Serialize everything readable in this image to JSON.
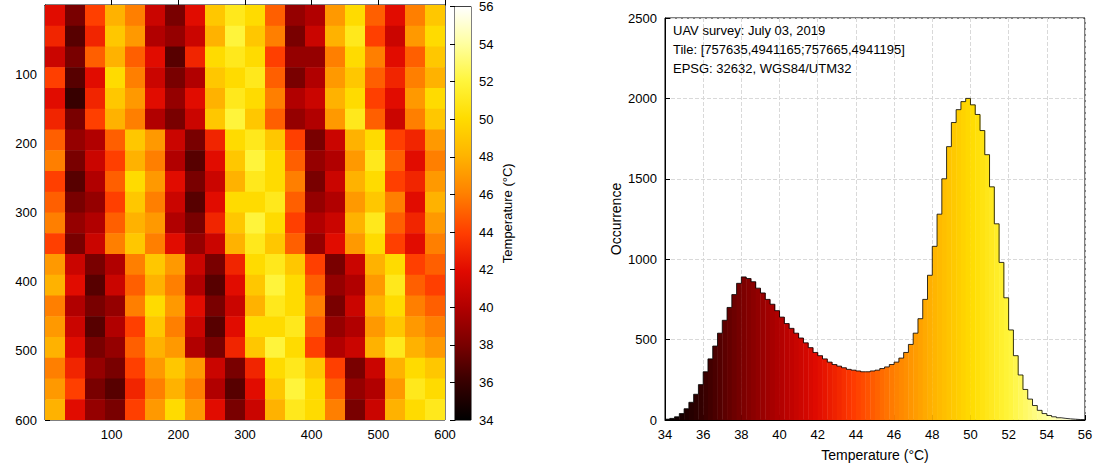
{
  "chart_data": [
    {
      "type": "heatmap",
      "xlim": [
        0,
        600
      ],
      "ylim": [
        600,
        0
      ],
      "xticks": [
        100,
        200,
        300,
        400,
        500,
        600
      ],
      "yticks": [
        100,
        200,
        300,
        400,
        500,
        600
      ],
      "cells": [
        [
          42,
          38,
          44,
          48,
          46,
          41,
          38,
          42,
          49,
          51,
          50,
          45,
          39,
          40,
          47,
          50,
          45,
          42,
          46,
          49
        ],
        [
          43,
          37,
          43,
          49,
          47,
          40,
          39,
          41,
          48,
          52,
          49,
          46,
          38,
          41,
          48,
          51,
          44,
          41,
          47,
          50
        ],
        [
          41,
          38,
          45,
          48,
          45,
          42,
          37,
          43,
          50,
          51,
          50,
          44,
          39,
          39,
          46,
          50,
          46,
          42,
          45,
          49
        ],
        [
          44,
          37,
          42,
          50,
          46,
          41,
          38,
          40,
          49,
          50,
          51,
          45,
          38,
          40,
          47,
          49,
          45,
          43,
          46,
          48
        ],
        [
          42,
          36,
          43,
          49,
          47,
          42,
          39,
          42,
          48,
          51,
          50,
          46,
          40,
          41,
          48,
          50,
          44,
          42,
          47,
          50
        ],
        [
          43,
          38,
          44,
          48,
          46,
          40,
          38,
          41,
          49,
          52,
          49,
          45,
          39,
          40,
          47,
          51,
          45,
          41,
          46,
          49
        ],
        [
          45,
          39,
          40,
          45,
          49,
          47,
          41,
          38,
          43,
          50,
          51,
          49,
          44,
          38,
          41,
          48,
          50,
          44,
          43,
          47
        ],
        [
          46,
          38,
          41,
          44,
          48,
          46,
          40,
          37,
          42,
          49,
          52,
          50,
          45,
          39,
          40,
          47,
          51,
          45,
          42,
          46
        ],
        [
          44,
          37,
          40,
          45,
          50,
          47,
          42,
          38,
          41,
          48,
          51,
          50,
          46,
          38,
          41,
          48,
          50,
          44,
          43,
          47
        ],
        [
          45,
          38,
          39,
          44,
          49,
          46,
          41,
          37,
          42,
          50,
          50,
          51,
          45,
          39,
          40,
          47,
          49,
          46,
          42,
          48
        ],
        [
          46,
          39,
          40,
          45,
          48,
          47,
          40,
          38,
          43,
          49,
          52,
          50,
          44,
          40,
          41,
          48,
          51,
          45,
          43,
          47
        ],
        [
          44,
          38,
          41,
          46,
          49,
          46,
          42,
          39,
          41,
          48,
          51,
          49,
          45,
          39,
          42,
          47,
          50,
          44,
          42,
          46
        ],
        [
          47,
          41,
          38,
          40,
          46,
          49,
          47,
          41,
          38,
          43,
          50,
          51,
          49,
          44,
          38,
          41,
          48,
          50,
          44,
          45
        ],
        [
          48,
          42,
          37,
          41,
          45,
          48,
          46,
          40,
          37,
          42,
          49,
          52,
          50,
          45,
          39,
          40,
          47,
          51,
          45,
          44
        ],
        [
          46,
          40,
          38,
          39,
          46,
          50,
          47,
          42,
          38,
          41,
          48,
          51,
          50,
          46,
          38,
          41,
          48,
          50,
          46,
          45
        ],
        [
          47,
          41,
          37,
          40,
          44,
          49,
          46,
          41,
          37,
          42,
          50,
          50,
          51,
          45,
          39,
          40,
          47,
          49,
          47,
          46
        ],
        [
          48,
          42,
          38,
          39,
          45,
          48,
          47,
          40,
          38,
          43,
          49,
          52,
          50,
          44,
          40,
          41,
          48,
          51,
          48,
          47
        ],
        [
          46,
          43,
          39,
          38,
          44,
          47,
          49,
          47,
          41,
          38,
          43,
          50,
          51,
          49,
          44,
          38,
          41,
          48,
          50,
          49
        ],
        [
          47,
          44,
          38,
          37,
          43,
          46,
          48,
          46,
          40,
          37,
          42,
          49,
          52,
          50,
          45,
          39,
          40,
          47,
          51,
          50
        ],
        [
          48,
          42,
          39,
          38,
          44,
          47,
          50,
          47,
          42,
          38,
          41,
          48,
          51,
          50,
          46,
          38,
          41,
          48,
          50,
          51
        ]
      ],
      "colorbar": {
        "label": "Temperature (°C)",
        "range": [
          34,
          56
        ],
        "ticks": [
          34,
          36,
          38,
          40,
          42,
          44,
          46,
          48,
          50,
          52,
          54,
          56
        ]
      }
    },
    {
      "type": "histogram",
      "x_label": "Temperature (°C)",
      "y_label": "Occurrence",
      "annotations": [
        "UAV survey: July 03, 2019",
        "Tile: [757635,4941165;757665,4941195]",
        "EPSG: 32632, WGS84/UTM32"
      ],
      "xlim": [
        34,
        56
      ],
      "xticks": [
        34,
        36,
        38,
        40,
        42,
        44,
        46,
        48,
        50,
        52,
        54,
        56
      ],
      "ylim": [
        0,
        2500
      ],
      "yticks": [
        0,
        500,
        1000,
        1500,
        2000,
        2500
      ],
      "grid": true,
      "bins": [
        34,
        34.25,
        34.5,
        34.75,
        35,
        35.25,
        35.5,
        35.75,
        36,
        36.25,
        36.5,
        36.75,
        37,
        37.25,
        37.5,
        37.75,
        38,
        38.25,
        38.5,
        38.75,
        39,
        39.25,
        39.5,
        39.75,
        40,
        40.25,
        40.5,
        40.75,
        41,
        41.25,
        41.5,
        41.75,
        42,
        42.25,
        42.5,
        42.75,
        43,
        43.25,
        43.5,
        43.75,
        44,
        44.25,
        44.5,
        44.75,
        45,
        45.25,
        45.5,
        45.75,
        46,
        46.25,
        46.5,
        46.75,
        47,
        47.25,
        47.5,
        47.75,
        48,
        48.25,
        48.5,
        48.75,
        49,
        49.25,
        49.5,
        49.75,
        50,
        50.25,
        50.5,
        50.75,
        51,
        51.25,
        51.5,
        51.75,
        52,
        52.25,
        52.5,
        52.75,
        53,
        53.25,
        53.5,
        53.75,
        54,
        54.25,
        54.5,
        54.75,
        55,
        55.25,
        55.5,
        55.75,
        56
      ],
      "counts": [
        5,
        10,
        20,
        40,
        70,
        110,
        160,
        220,
        300,
        380,
        460,
        540,
        620,
        700,
        780,
        850,
        890,
        880,
        860,
        820,
        790,
        750,
        720,
        680,
        640,
        600,
        570,
        540,
        510,
        480,
        450,
        420,
        400,
        380,
        360,
        345,
        335,
        325,
        315,
        310,
        305,
        300,
        300,
        305,
        310,
        320,
        330,
        345,
        360,
        385,
        420,
        470,
        540,
        630,
        750,
        900,
        1080,
        1280,
        1500,
        1700,
        1850,
        1930,
        1980,
        2000,
        1960,
        1900,
        1800,
        1650,
        1450,
        1220,
        980,
        760,
        560,
        400,
        280,
        190,
        130,
        90,
        60,
        40,
        28,
        20,
        14,
        10,
        7,
        5,
        3,
        2
      ]
    }
  ]
}
